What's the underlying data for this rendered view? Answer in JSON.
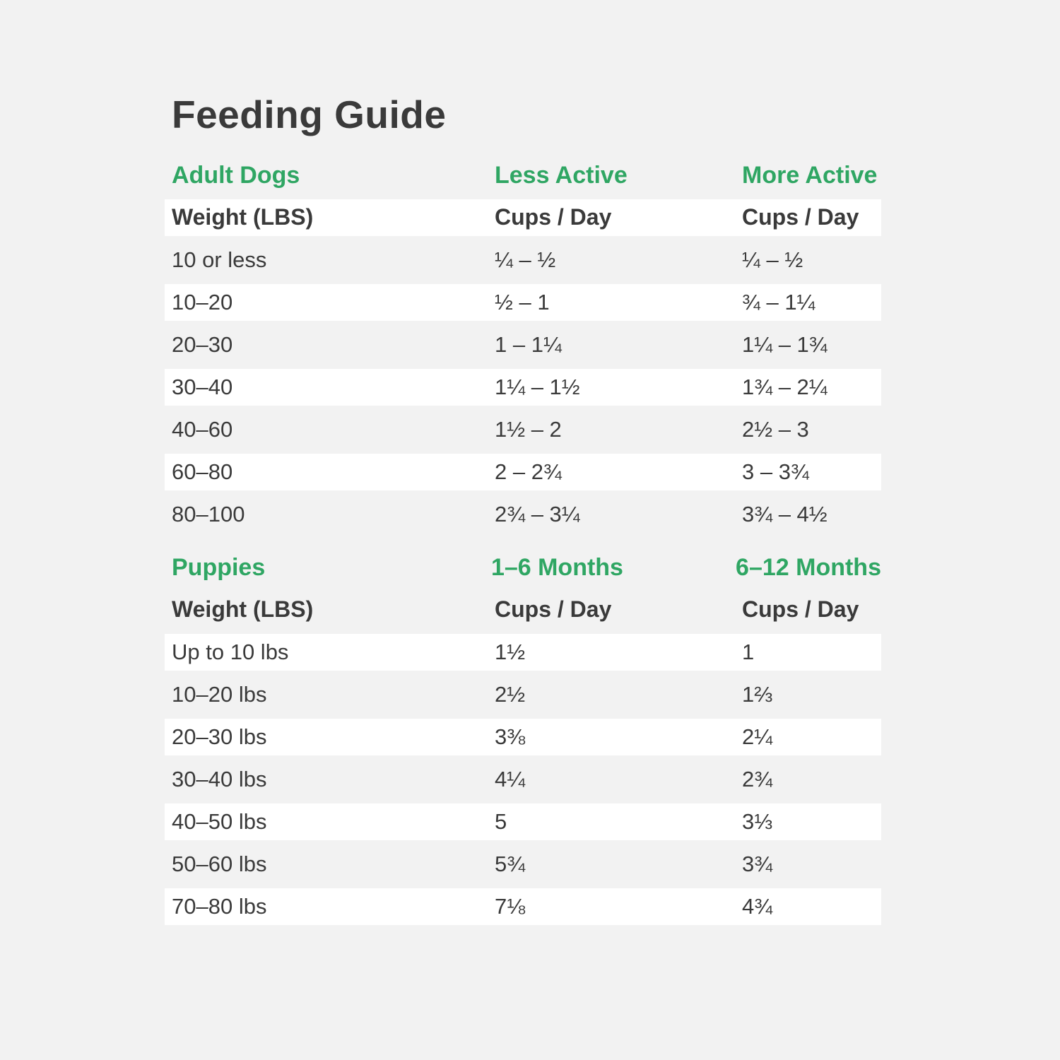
{
  "page": {
    "title": "Feeding Guide",
    "colors": {
      "background": "#f2f2f2",
      "row_stripe": "#ffffff",
      "heading_green": "#2fa663",
      "text_dark": "#3a3a3a"
    }
  },
  "tables": [
    {
      "section": {
        "col1": "Adult Dogs",
        "col2": "Less Active",
        "col3": "More Active"
      },
      "header": {
        "col1": "Weight (LBS)",
        "col2": "Cups / Day",
        "col3": "Cups / Day"
      },
      "rows": [
        {
          "col1": "10 or less",
          "col2": "¼ – ½",
          "col3": "¼ – ½"
        },
        {
          "col1": "10–20",
          "col2": "½ – 1",
          "col3": "¾ – 1¼"
        },
        {
          "col1": "20–30",
          "col2": "1 – 1¼",
          "col3": "1¼ – 1¾"
        },
        {
          "col1": "30–40",
          "col2": "1¼ – 1½",
          "col3": "1¾ – 2¼"
        },
        {
          "col1": "40–60",
          "col2": "1½ – 2",
          "col3": "2½ – 3"
        },
        {
          "col1": "60–80",
          "col2": "2 – 2¾",
          "col3": "3 – 3¾"
        },
        {
          "col1": "80–100",
          "col2": "2¾ – 3¼",
          "col3": "3¾ – 4½"
        }
      ]
    },
    {
      "section": {
        "col1": "Puppies",
        "col2": "1–6 Months",
        "col3": "6–12 Months"
      },
      "header": {
        "col1": "Weight (LBS)",
        "col2": "Cups / Day",
        "col3": "Cups / Day"
      },
      "rows": [
        {
          "col1": "Up to 10 lbs",
          "col2": "1½",
          "col3": "1"
        },
        {
          "col1": "10–20 lbs",
          "col2": "2½",
          "col3": "1⅔"
        },
        {
          "col1": "20–30 lbs",
          "col2": "3⅜",
          "col3": "2¼"
        },
        {
          "col1": "30–40 lbs",
          "col2": "4¼",
          "col3": "2¾"
        },
        {
          "col1": "40–50 lbs",
          "col2": "5",
          "col3": "3⅓"
        },
        {
          "col1": "50–60 lbs",
          "col2": "5¾",
          "col3": "3¾"
        },
        {
          "col1": "70–80 lbs",
          "col2": "7⅛",
          "col3": "4¾"
        }
      ]
    }
  ]
}
